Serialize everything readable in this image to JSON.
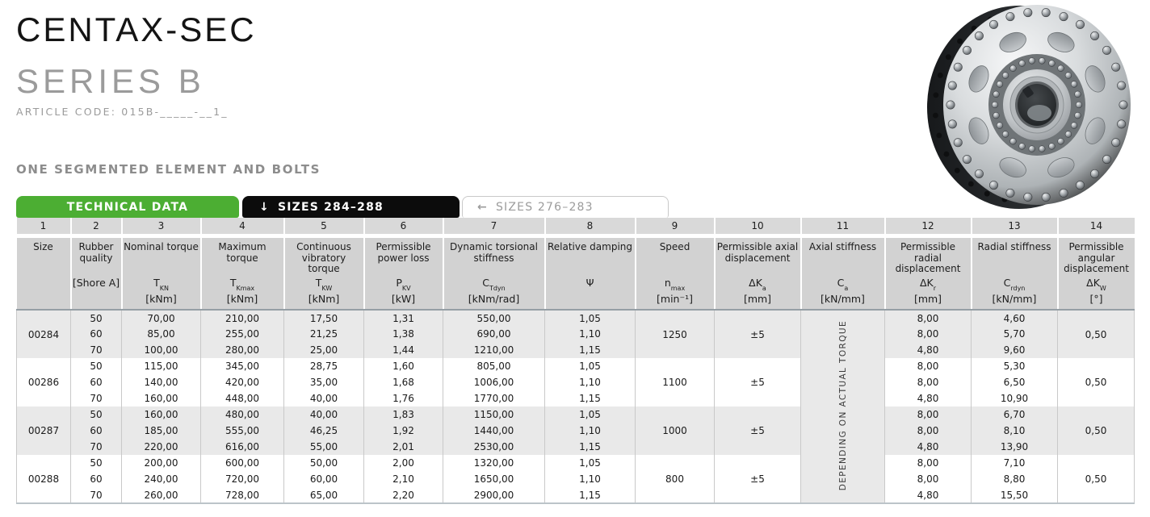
{
  "header": {
    "title": "CENTAX-SEC",
    "subtitle": "SERIES B",
    "article_code": "ARTICLE CODE: 015B-_____-__1_",
    "section_label": "ONE SEGMENTED ELEMENT AND BOLTS"
  },
  "tabs": [
    {
      "label": "TECHNICAL DATA",
      "arrow": "",
      "active": true
    },
    {
      "label": "SIZES 284–288",
      "arrow": "↓",
      "active": false
    },
    {
      "label": "SIZES 276–283",
      "arrow": "←",
      "active": false
    }
  ],
  "colors": {
    "accent_green": "#4cae33",
    "tab_black": "#0c0c0c",
    "header_gray": "#d2d2d2",
    "row_alt_gray": "#e9e9e9",
    "grid_line": "#c9c9c9"
  },
  "table": {
    "depends_note": "DEPENDING ON ACTUAL TORQUE",
    "columns": [
      {
        "num": "1",
        "name": "Size",
        "symbol": "",
        "sub": "",
        "unit": ""
      },
      {
        "num": "2",
        "name": "Rubber quality",
        "symbol": "[Shore A]",
        "sub": "",
        "unit": ""
      },
      {
        "num": "3",
        "name": "Nominal torque",
        "symbol": "T",
        "sub": "KN",
        "unit": "[kNm]"
      },
      {
        "num": "4",
        "name": "Maximum torque",
        "symbol": "T",
        "sub": "Kmax",
        "unit": "[kNm]"
      },
      {
        "num": "5",
        "name": "Continuous vibratory torque",
        "symbol": "T",
        "sub": "KW",
        "unit": "[kNm]"
      },
      {
        "num": "6",
        "name": "Permissible power loss",
        "symbol": "P",
        "sub": "KV",
        "unit": "[kW]"
      },
      {
        "num": "7",
        "name": "Dynamic torsional stiffness",
        "symbol": "C",
        "sub": "Tdyn",
        "unit": "[kNm/rad]"
      },
      {
        "num": "8",
        "name": "Relative damping",
        "symbol": "Ψ",
        "sub": "",
        "unit": ""
      },
      {
        "num": "9",
        "name": "Speed",
        "symbol": "n",
        "sub": "max",
        "unit": "[min⁻¹]"
      },
      {
        "num": "10",
        "name": "Permissible axial displacement",
        "symbol": "ΔK",
        "sub": "a",
        "unit": "[mm]"
      },
      {
        "num": "11",
        "name": "Axial stiffness",
        "symbol": "C",
        "sub": "a",
        "unit": "[kN/mm]"
      },
      {
        "num": "12",
        "name": "Permissible radial displacement",
        "symbol": "ΔK",
        "sub": "r",
        "unit": "[mm]"
      },
      {
        "num": "13",
        "name": "Radial stiffness",
        "symbol": "C",
        "sub": "rdyn",
        "unit": "[kN/mm]"
      },
      {
        "num": "14",
        "name": "Permissible angular displacement",
        "symbol": "ΔK",
        "sub": "W",
        "unit": "[°]"
      }
    ],
    "groups": [
      {
        "size": "00284",
        "speed": "1250",
        "axial_disp": "±5",
        "angular_disp": "0,50",
        "rows": [
          {
            "shore": "50",
            "tkn": "70,00",
            "tkmax": "210,00",
            "tkw": "17,50",
            "pkv": "1,31",
            "ctdyn": "550,00",
            "psi": "1,05",
            "dkr": "8,00",
            "crdyn": "4,60"
          },
          {
            "shore": "60",
            "tkn": "85,00",
            "tkmax": "255,00",
            "tkw": "21,25",
            "pkv": "1,38",
            "ctdyn": "690,00",
            "psi": "1,10",
            "dkr": "8,00",
            "crdyn": "5,70"
          },
          {
            "shore": "70",
            "tkn": "100,00",
            "tkmax": "280,00",
            "tkw": "25,00",
            "pkv": "1,44",
            "ctdyn": "1210,00",
            "psi": "1,15",
            "dkr": "4,80",
            "crdyn": "9,60"
          }
        ]
      },
      {
        "size": "00286",
        "speed": "1100",
        "axial_disp": "±5",
        "angular_disp": "0,50",
        "rows": [
          {
            "shore": "50",
            "tkn": "115,00",
            "tkmax": "345,00",
            "tkw": "28,75",
            "pkv": "1,60",
            "ctdyn": "805,00",
            "psi": "1,05",
            "dkr": "8,00",
            "crdyn": "5,30"
          },
          {
            "shore": "60",
            "tkn": "140,00",
            "tkmax": "420,00",
            "tkw": "35,00",
            "pkv": "1,68",
            "ctdyn": "1006,00",
            "psi": "1,10",
            "dkr": "8,00",
            "crdyn": "6,50"
          },
          {
            "shore": "70",
            "tkn": "160,00",
            "tkmax": "448,00",
            "tkw": "40,00",
            "pkv": "1,76",
            "ctdyn": "1770,00",
            "psi": "1,15",
            "dkr": "4,80",
            "crdyn": "10,90"
          }
        ]
      },
      {
        "size": "00287",
        "speed": "1000",
        "axial_disp": "±5",
        "angular_disp": "0,50",
        "rows": [
          {
            "shore": "50",
            "tkn": "160,00",
            "tkmax": "480,00",
            "tkw": "40,00",
            "pkv": "1,83",
            "ctdyn": "1150,00",
            "psi": "1,05",
            "dkr": "8,00",
            "crdyn": "6,70"
          },
          {
            "shore": "60",
            "tkn": "185,00",
            "tkmax": "555,00",
            "tkw": "46,25",
            "pkv": "1,92",
            "ctdyn": "1440,00",
            "psi": "1,10",
            "dkr": "8,00",
            "crdyn": "8,10"
          },
          {
            "shore": "70",
            "tkn": "220,00",
            "tkmax": "616,00",
            "tkw": "55,00",
            "pkv": "2,01",
            "ctdyn": "2530,00",
            "psi": "1,15",
            "dkr": "4,80",
            "crdyn": "13,90"
          }
        ]
      },
      {
        "size": "00288",
        "speed": "800",
        "axial_disp": "±5",
        "angular_disp": "0,50",
        "rows": [
          {
            "shore": "50",
            "tkn": "200,00",
            "tkmax": "600,00",
            "tkw": "50,00",
            "pkv": "2,00",
            "ctdyn": "1320,00",
            "psi": "1,05",
            "dkr": "8,00",
            "crdyn": "7,10"
          },
          {
            "shore": "60",
            "tkn": "240,00",
            "tkmax": "720,00",
            "tkw": "60,00",
            "pkv": "2,10",
            "ctdyn": "1650,00",
            "psi": "1,10",
            "dkr": "8,00",
            "crdyn": "8,80"
          },
          {
            "shore": "70",
            "tkn": "260,00",
            "tkmax": "728,00",
            "tkw": "65,00",
            "pkv": "2,20",
            "ctdyn": "2900,00",
            "psi": "1,15",
            "dkr": "4,80",
            "crdyn": "15,50"
          }
        ]
      }
    ]
  }
}
